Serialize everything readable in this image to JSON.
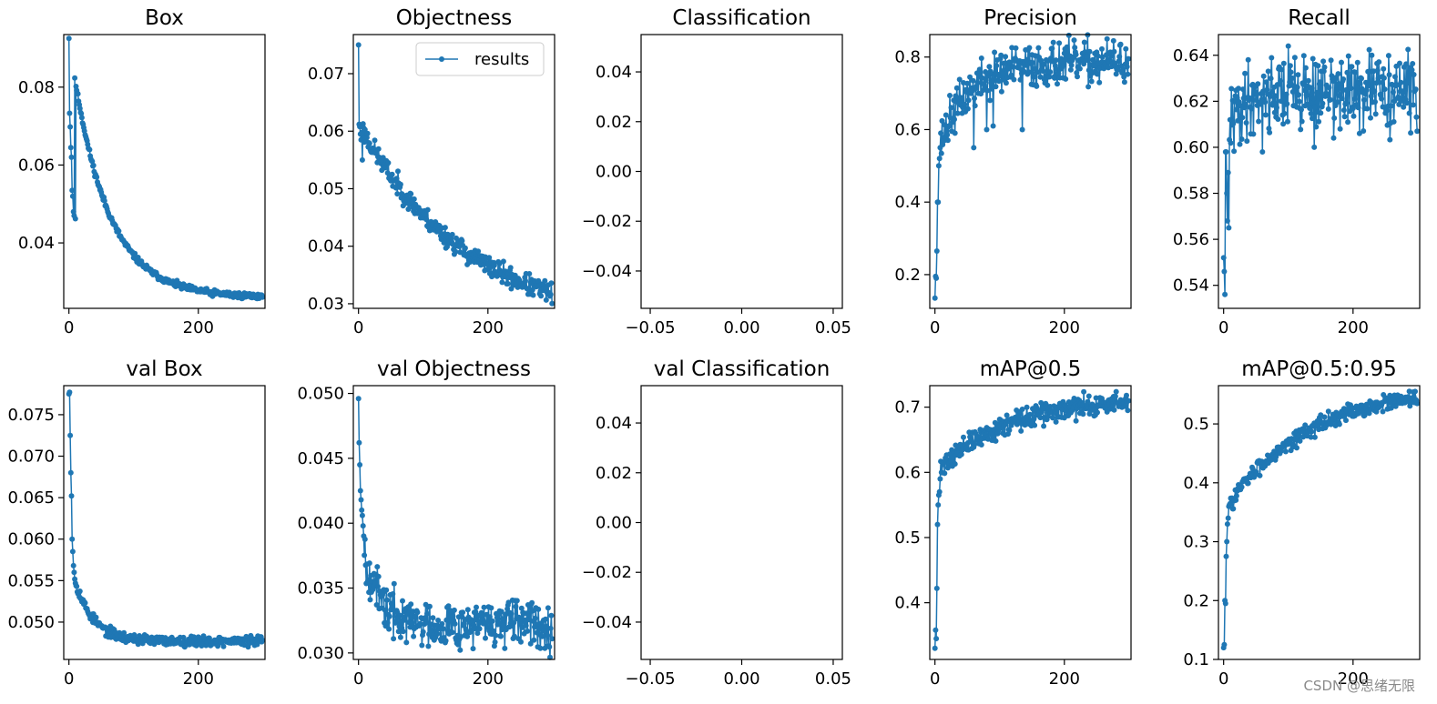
{
  "figure": {
    "watermark": "CSDN @思绪无限",
    "legend_label": "results"
  },
  "colors": {
    "series": "#1f77b4",
    "axes": "#000000"
  },
  "chart_data": [
    {
      "type": "line",
      "title": "Box",
      "xlim": [
        -8,
        303
      ],
      "ylim": [
        0.0232,
        0.0935
      ],
      "xticks": [
        0,
        200
      ],
      "xticklabels": [
        "0",
        "200"
      ],
      "yticks": [
        0.04,
        0.06,
        0.08
      ],
      "yticklabels": [
        "0.04",
        "0.06",
        "0.08"
      ],
      "series": [
        {
          "name": "results",
          "n": 300,
          "kind": "decay",
          "start": 0.0925,
          "end": 0.026,
          "tau": 55,
          "noise": 0.0004,
          "seed": 11,
          "pins": [
            [
              0,
              0.0925
            ],
            [
              1,
              0.0733
            ],
            [
              2,
              0.0698
            ],
            [
              3,
              0.0645
            ],
            [
              4,
              0.062
            ],
            [
              5,
              0.0535
            ],
            [
              6,
              0.052
            ],
            [
              7,
              0.048
            ],
            [
              8,
              0.047
            ],
            [
              10,
              0.0462
            ]
          ]
        }
      ]
    },
    {
      "type": "line",
      "title": "Objectness",
      "xlim": [
        -8,
        303
      ],
      "ylim": [
        0.0292,
        0.0768
      ],
      "xticks": [
        0,
        200
      ],
      "xticklabels": [
        "0",
        "200"
      ],
      "yticks": [
        0.03,
        0.04,
        0.05,
        0.06,
        0.07
      ],
      "yticklabels": [
        "0.03",
        "0.04",
        "0.05",
        "0.06",
        "0.07"
      ],
      "legend": {
        "label": "results",
        "placement": "upper right"
      },
      "series": [
        {
          "name": "results",
          "n": 300,
          "kind": "decay",
          "start": 0.0615,
          "end": 0.026,
          "tau": 165,
          "noise": 0.0009,
          "seed": 23,
          "pins": [
            [
              0,
              0.075
            ],
            [
              1,
              0.0612
            ],
            [
              2,
              0.0608
            ],
            [
              3,
              0.0595
            ],
            [
              4,
              0.0585
            ],
            [
              6,
              0.055
            ]
          ]
        }
      ]
    },
    {
      "type": "empty",
      "title": "Classification",
      "xlim": [
        -0.055,
        0.055
      ],
      "ylim": [
        -0.055,
        0.055
      ],
      "xticks": [
        -0.05,
        0.0,
        0.05
      ],
      "xticklabels": [
        "−0.05",
        "0.00",
        "0.05"
      ],
      "yticks": [
        -0.04,
        -0.02,
        0.0,
        0.02,
        0.04
      ],
      "yticklabels": [
        "−0.04",
        "−0.02",
        "0.00",
        "0.02",
        "0.04"
      ]
    },
    {
      "type": "line",
      "title": "Precision",
      "xlim": [
        -8,
        303
      ],
      "ylim": [
        0.107,
        0.862
      ],
      "xticks": [
        0,
        200
      ],
      "xticklabels": [
        "0",
        "200"
      ],
      "yticks": [
        0.2,
        0.4,
        0.6,
        0.8
      ],
      "yticklabels": [
        "0.2",
        "0.4",
        "0.6",
        "0.8"
      ],
      "series": [
        {
          "name": "results",
          "n": 300,
          "kind": "rise",
          "start": 0.52,
          "end": 0.785,
          "tau": 45,
          "noise": 0.03,
          "seed": 37,
          "pins": [
            [
              0,
              0.135
            ],
            [
              1,
              0.195
            ],
            [
              2,
              0.19
            ],
            [
              3,
              0.265
            ],
            [
              4,
              0.4
            ],
            [
              5,
              0.4
            ],
            [
              6,
              0.5
            ],
            [
              7,
              0.52
            ],
            [
              8,
              0.55
            ],
            [
              9,
              0.59
            ],
            [
              80,
              0.6
            ],
            [
              90,
              0.61
            ],
            [
              135,
              0.6
            ],
            [
              60,
              0.55
            ]
          ]
        }
      ]
    },
    {
      "type": "line",
      "title": "Recall",
      "xlim": [
        -8,
        303
      ],
      "ylim": [
        0.53,
        0.649
      ],
      "xticks": [
        0,
        200
      ],
      "xticklabels": [
        "0",
        "200"
      ],
      "yticks": [
        0.54,
        0.56,
        0.58,
        0.6,
        0.62,
        0.64
      ],
      "yticklabels": [
        "0.54",
        "0.56",
        "0.58",
        "0.60",
        "0.62",
        "0.64"
      ],
      "series": [
        {
          "name": "results",
          "n": 300,
          "kind": "rise",
          "start": 0.6,
          "end": 0.624,
          "tau": 20,
          "noise": 0.008,
          "seed": 41,
          "pins": [
            [
              0,
              0.552
            ],
            [
              1,
              0.546
            ],
            [
              2,
              0.536
            ],
            [
              3,
              0.598
            ],
            [
              4,
              0.598
            ],
            [
              5,
              0.58
            ],
            [
              6,
              0.568
            ],
            [
              7,
              0.589
            ],
            [
              8,
              0.565
            ],
            [
              10,
              0.612
            ],
            [
              100,
              0.644
            ],
            [
              60,
              0.598
            ],
            [
              140,
              0.6
            ],
            [
              170,
              0.604
            ],
            [
              210,
              0.606
            ]
          ]
        }
      ]
    },
    {
      "type": "line",
      "title": "val Box",
      "xlim": [
        -8,
        303
      ],
      "ylim": [
        0.0455,
        0.0785
      ],
      "xticks": [
        0,
        200
      ],
      "xticklabels": [
        "0",
        "200"
      ],
      "yticks": [
        0.05,
        0.055,
        0.06,
        0.065,
        0.07,
        0.075
      ],
      "yticklabels": [
        "0.050",
        "0.055",
        "0.060",
        "0.065",
        "0.070",
        "0.075"
      ],
      "series": [
        {
          "name": "results",
          "n": 300,
          "kind": "decay",
          "start": 0.058,
          "end": 0.0477,
          "tau": 28,
          "noise": 0.0003,
          "seed": 53,
          "pins": [
            [
              0,
              0.0775
            ],
            [
              1,
              0.0777
            ],
            [
              2,
              0.0725
            ],
            [
              3,
              0.068
            ],
            [
              4,
              0.0652
            ],
            [
              5,
              0.06
            ],
            [
              6,
              0.0585
            ],
            [
              7,
              0.0568
            ],
            [
              8,
              0.056
            ]
          ]
        }
      ]
    },
    {
      "type": "line",
      "title": "val Objectness",
      "xlim": [
        -8,
        303
      ],
      "ylim": [
        0.0295,
        0.0506
      ],
      "xticks": [
        0,
        200
      ],
      "xticklabels": [
        "0",
        "200"
      ],
      "yticks": [
        0.03,
        0.035,
        0.04,
        0.045,
        0.05
      ],
      "yticklabels": [
        "0.030",
        "0.035",
        "0.040",
        "0.045",
        "0.050"
      ],
      "series": [
        {
          "name": "results",
          "n": 300,
          "kind": "decay",
          "start": 0.041,
          "end": 0.0322,
          "tau": 22,
          "noise": 0.0009,
          "seed": 67,
          "pins": [
            [
              0,
              0.0496
            ],
            [
              1,
              0.0462
            ],
            [
              2,
              0.0445
            ],
            [
              3,
              0.0425
            ],
            [
              4,
              0.0418
            ],
            [
              5,
              0.041
            ],
            [
              6,
              0.0406
            ],
            [
              7,
              0.0398
            ]
          ]
        }
      ]
    },
    {
      "type": "empty",
      "title": "val Classification",
      "xlim": [
        -0.055,
        0.055
      ],
      "ylim": [
        -0.055,
        0.055
      ],
      "xticks": [
        -0.05,
        0.0,
        0.05
      ],
      "xticklabels": [
        "−0.05",
        "0.00",
        "0.05"
      ],
      "yticks": [
        -0.04,
        -0.02,
        0.0,
        0.02,
        0.04
      ],
      "yticklabels": [
        "−0.04",
        "−0.02",
        "0.00",
        "0.02",
        "0.04"
      ]
    },
    {
      "type": "line",
      "title": "mAP@0.5",
      "xlim": [
        -8,
        303
      ],
      "ylim": [
        0.313,
        0.733
      ],
      "xticks": [
        0,
        200
      ],
      "xticklabels": [
        "0",
        "200"
      ],
      "yticks": [
        0.4,
        0.5,
        0.6,
        0.7
      ],
      "yticklabels": [
        "0.4",
        "0.5",
        "0.6",
        "0.7"
      ],
      "series": [
        {
          "name": "results",
          "n": 300,
          "kind": "rise",
          "start": 0.6,
          "end": 0.715,
          "tau": 110,
          "noise": 0.008,
          "seed": 71,
          "pins": [
            [
              0,
              0.33
            ],
            [
              1,
              0.358
            ],
            [
              2,
              0.345
            ],
            [
              3,
              0.422
            ],
            [
              4,
              0.52
            ],
            [
              5,
              0.55
            ],
            [
              6,
              0.565
            ],
            [
              7,
              0.57
            ],
            [
              8,
              0.59
            ]
          ]
        }
      ]
    },
    {
      "type": "line",
      "title": "mAP@0.5:0.95",
      "xlim": [
        -8,
        303
      ],
      "ylim": [
        0.1,
        0.565
      ],
      "xticks": [
        0,
        200
      ],
      "xticklabels": [
        "0",
        "200"
      ],
      "yticks": [
        0.1,
        0.2,
        0.3,
        0.4,
        0.5
      ],
      "yticklabels": [
        "0.1",
        "0.2",
        "0.3",
        "0.4",
        "0.5"
      ],
      "series": [
        {
          "name": "results",
          "n": 300,
          "kind": "rise",
          "start": 0.35,
          "end": 0.56,
          "tau": 120,
          "noise": 0.007,
          "seed": 83,
          "pins": [
            [
              0,
              0.12
            ],
            [
              1,
              0.125
            ],
            [
              2,
              0.2
            ],
            [
              3,
              0.195
            ],
            [
              4,
              0.275
            ],
            [
              5,
              0.3
            ],
            [
              6,
              0.33
            ],
            [
              7,
              0.34
            ],
            [
              8,
              0.36
            ]
          ]
        }
      ]
    }
  ]
}
